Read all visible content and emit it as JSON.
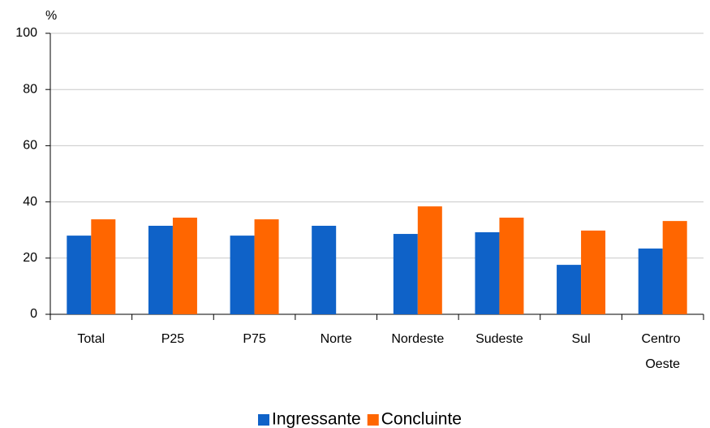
{
  "chart_data": {
    "type": "bar",
    "y_label": "%",
    "categories": [
      "Total",
      "P25",
      "P75",
      "Norte",
      "Nordeste",
      "Sudeste",
      "Sul",
      "Centro Oeste"
    ],
    "series": [
      {
        "name": "Ingressante",
        "color": "#0f62c8",
        "values": [
          28.0,
          31.5,
          28.0,
          31.5,
          28.6,
          29.2,
          17.6,
          23.4
        ]
      },
      {
        "name": "Concluinte",
        "color": "#ff6600",
        "values": [
          33.8,
          34.4,
          33.8,
          null,
          38.4,
          34.4,
          29.8,
          33.2
        ]
      }
    ],
    "ylim": [
      0,
      100
    ],
    "yticks": [
      0,
      20,
      40,
      60,
      80,
      100
    ],
    "grid": true,
    "legend": "bottom"
  }
}
